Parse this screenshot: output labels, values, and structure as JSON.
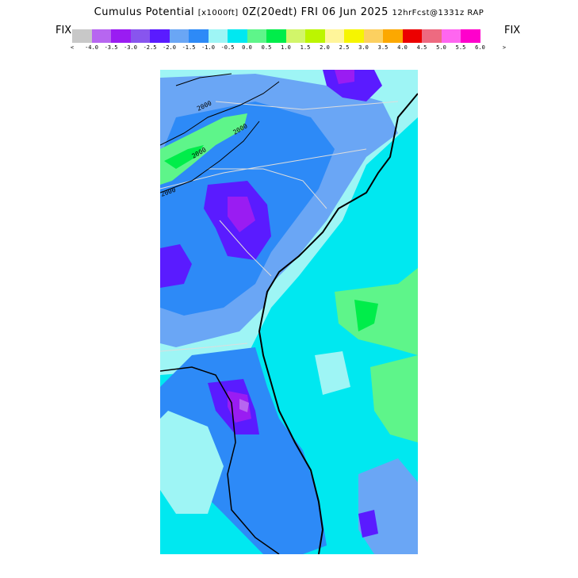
{
  "title": {
    "main": "Cumulus Potential",
    "units": "[x1000ft]",
    "time": "0Z(20edt) FRI 06 Jun 2025",
    "forecast": "12hrFcst@1331z RAP"
  },
  "legend": {
    "left_label": "FIX",
    "right_label": "FIX",
    "under_arrow": "<",
    "over_arrow": ">",
    "colors": [
      "#c8c8c8",
      "#b766f0",
      "#9a1cf2",
      "#8855ee",
      "#5a1bff",
      "#6aa6f5",
      "#2d8af7",
      "#9ef5f5",
      "#00e8f0",
      "#5ef58a",
      "#00ed4a",
      "#d2f56a",
      "#bcf500",
      "#fff59a",
      "#f6f500",
      "#fcd060",
      "#fca800",
      "#ec0000",
      "#ee6a80",
      "#ff66f0",
      "#ff00cc"
    ],
    "tick_labels": [
      "-4.0",
      "-3.5",
      "-3.0",
      "-2.5",
      "-2.0",
      "-1.5",
      "-1.0",
      "-0.5",
      "0.0",
      "0.5",
      "1.0",
      "1.5",
      "2.0",
      "2.5",
      "3.0",
      "3.5",
      "4.0",
      "4.5",
      "5.0",
      "5.5",
      "6.0"
    ]
  },
  "map": {
    "contour_labels": [
      "2000",
      "2000",
      "2000",
      "2000"
    ],
    "palette": {
      "cyan": "#00e8f0",
      "light_cyan": "#9ef5f5",
      "blue": "#2d8af7",
      "light_blue": "#6aa6f5",
      "violet": "#5a1bff",
      "purple": "#9a1cf2",
      "lavender": "#b766f0",
      "green": "#5ef58a",
      "bright_green": "#00ed4a"
    }
  }
}
